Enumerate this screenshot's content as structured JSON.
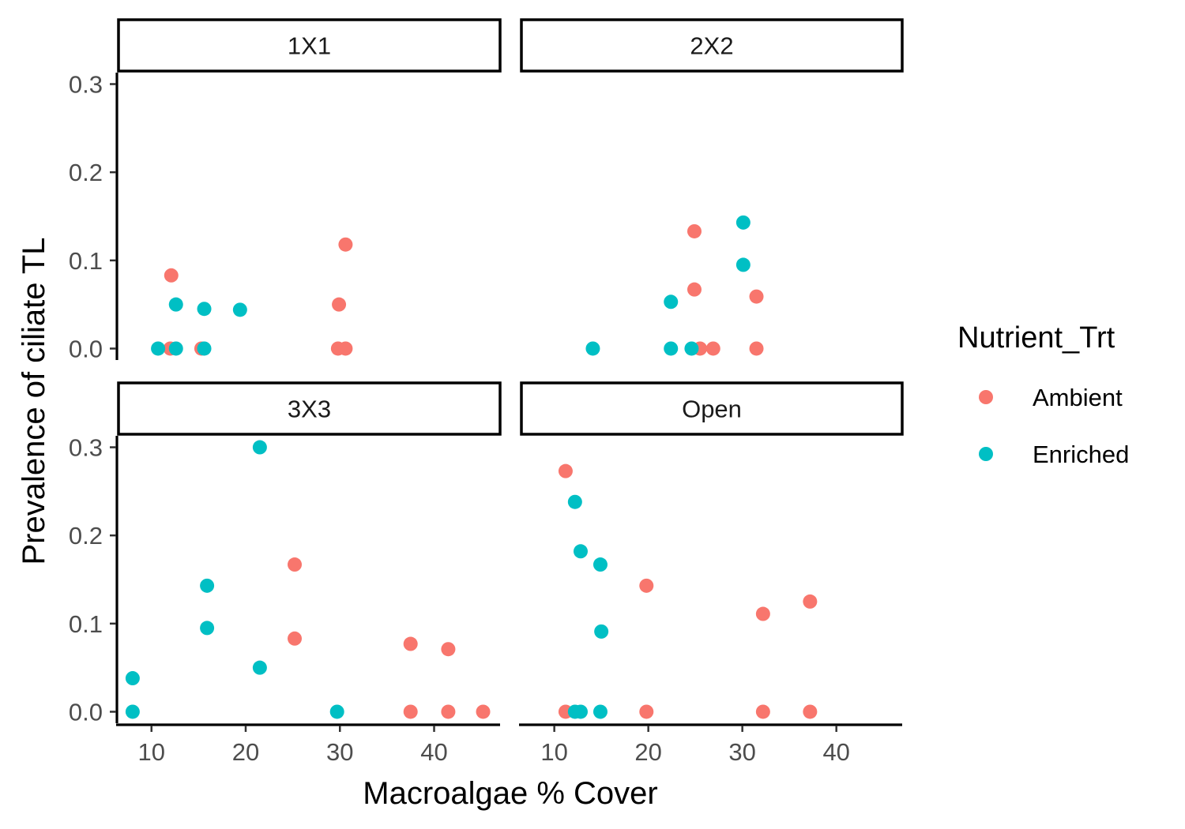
{
  "chart_data": {
    "type": "scatter",
    "xlabel": "Macroalgae % Cover",
    "ylabel": "Prevalence of ciliate TL",
    "xlim": [
      6.5,
      47
    ],
    "ylim": [
      -0.013,
      0.313
    ],
    "x_ticks": [
      10,
      20,
      30,
      40
    ],
    "y_ticks": [
      0.0,
      0.1,
      0.2,
      0.3
    ],
    "y_tick_labels": [
      "0.0",
      "0.1",
      "0.2",
      "0.3"
    ],
    "grid": false,
    "legend": {
      "title": "Nutrient_Trt",
      "position": "right",
      "entries": [
        {
          "label": "Ambient",
          "color": "#F8766D"
        },
        {
          "label": "Enriched",
          "color": "#00BFC4"
        }
      ]
    },
    "panels": [
      {
        "title": "1X1",
        "series": [
          {
            "name": "Ambient",
            "color": "#F8766D",
            "points": [
              [
                12.1,
                0.083
              ],
              [
                12.0,
                0.0
              ],
              [
                15.3,
                0.0
              ],
              [
                30.6,
                0.118
              ],
              [
                29.9,
                0.05
              ],
              [
                29.8,
                0.0
              ],
              [
                30.6,
                0.0
              ]
            ]
          },
          {
            "name": "Enriched",
            "color": "#00BFC4",
            "points": [
              [
                10.7,
                0.0
              ],
              [
                12.6,
                0.05
              ],
              [
                12.6,
                0.0
              ],
              [
                15.6,
                0.045
              ],
              [
                15.6,
                0.0
              ],
              [
                19.4,
                0.044
              ]
            ]
          }
        ]
      },
      {
        "title": "2X2",
        "series": [
          {
            "name": "Ambient",
            "color": "#F8766D",
            "points": [
              [
                24.9,
                0.133
              ],
              [
                24.9,
                0.067
              ],
              [
                25.5,
                0.0
              ],
              [
                26.9,
                0.0
              ],
              [
                31.5,
                0.059
              ],
              [
                31.5,
                0.0
              ]
            ]
          },
          {
            "name": "Enriched",
            "color": "#00BFC4",
            "points": [
              [
                14.1,
                0.0
              ],
              [
                22.4,
                0.053
              ],
              [
                22.4,
                0.0
              ],
              [
                24.6,
                0.0
              ],
              [
                30.1,
                0.143
              ],
              [
                30.1,
                0.095
              ]
            ]
          }
        ]
      },
      {
        "title": "3X3",
        "series": [
          {
            "name": "Ambient",
            "color": "#F8766D",
            "points": [
              [
                25.2,
                0.167
              ],
              [
                25.2,
                0.083
              ],
              [
                37.5,
                0.077
              ],
              [
                37.5,
                0.0
              ],
              [
                41.5,
                0.071
              ],
              [
                41.5,
                0.0
              ],
              [
                45.2,
                0.0
              ]
            ]
          },
          {
            "name": "Enriched",
            "color": "#00BFC4",
            "points": [
              [
                8.0,
                0.038
              ],
              [
                8.0,
                0.0
              ],
              [
                15.9,
                0.143
              ],
              [
                15.9,
                0.095
              ],
              [
                21.5,
                0.3
              ],
              [
                21.5,
                0.05
              ],
              [
                29.7,
                0.0
              ]
            ]
          }
        ]
      },
      {
        "title": "Open",
        "series": [
          {
            "name": "Ambient",
            "color": "#F8766D",
            "points": [
              [
                11.2,
                0.273
              ],
              [
                11.2,
                0.0
              ],
              [
                19.8,
                0.143
              ],
              [
                19.8,
                0.0
              ],
              [
                32.2,
                0.111
              ],
              [
                32.2,
                0.0
              ],
              [
                37.2,
                0.125
              ],
              [
                37.2,
                0.0
              ]
            ]
          },
          {
            "name": "Enriched",
            "color": "#00BFC4",
            "points": [
              [
                12.2,
                0.238
              ],
              [
                12.2,
                0.0
              ],
              [
                12.8,
                0.182
              ],
              [
                12.8,
                0.0
              ],
              [
                14.9,
                0.167
              ],
              [
                15.0,
                0.091
              ],
              [
                14.9,
                0.0
              ]
            ]
          }
        ]
      }
    ]
  }
}
